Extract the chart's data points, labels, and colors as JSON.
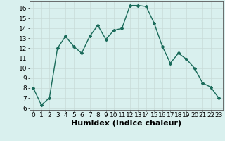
{
  "x": [
    0,
    1,
    2,
    3,
    4,
    5,
    6,
    7,
    8,
    9,
    10,
    11,
    12,
    13,
    14,
    15,
    16,
    17,
    18,
    19,
    20,
    21,
    22,
    23
  ],
  "y": [
    8,
    6.3,
    7,
    12,
    13.2,
    12.2,
    11.5,
    13.2,
    14.3,
    12.9,
    13.8,
    14.0,
    16.3,
    16.3,
    16.2,
    14.5,
    12.2,
    10.5,
    11.5,
    10.9,
    10.0,
    8.5,
    8.1,
    7.0
  ],
  "xlabel": "Humidex (Indice chaleur)",
  "ylim": [
    5.8,
    16.7
  ],
  "xlim": [
    -0.5,
    23.5
  ],
  "yticks": [
    6,
    7,
    8,
    9,
    10,
    11,
    12,
    13,
    14,
    15,
    16
  ],
  "xticks": [
    0,
    1,
    2,
    3,
    4,
    5,
    6,
    7,
    8,
    9,
    10,
    11,
    12,
    13,
    14,
    15,
    16,
    17,
    18,
    19,
    20,
    21,
    22,
    23
  ],
  "line_color": "#1a6b5a",
  "marker": "D",
  "marker_size": 2.0,
  "bg_color": "#d9f0ee",
  "grid_color": "#c8dbd8",
  "tick_fontsize": 6.5,
  "xlabel_fontsize": 8,
  "line_width": 1.0
}
